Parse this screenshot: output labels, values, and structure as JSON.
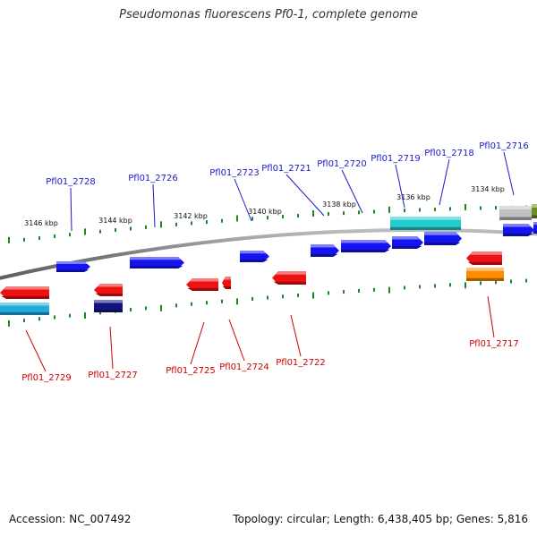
{
  "title": "Pseudomonas fluorescens Pf0-1, complete genome",
  "footer": {
    "accession": "Accession: NC_007492",
    "summary": "Topology: circular; Length: 6,438,405 bp; Genes: 5,816"
  },
  "colors": {
    "forward_label": "#1a1acc",
    "reverse_label": "#cc0000",
    "tick": "#1a8a1a",
    "backbone": "#8c8c8c"
  },
  "scale_labels": [
    "3146 kbp",
    "3144 kbp",
    "3142 kbp",
    "3140 kbp",
    "3138 kbp",
    "3136 kbp",
    "3134 kbp"
  ],
  "forward_genes": [
    {
      "id": "Pfl01_2728",
      "color": "#1414f0"
    },
    {
      "id": "Pfl01_2726",
      "color": "#1414f0"
    },
    {
      "id": "Pfl01_2723",
      "color": "#1414f0"
    },
    {
      "id": "Pfl01_2721",
      "color": "#1414f0"
    },
    {
      "id": "Pfl01_2720",
      "color": "#1414f0"
    },
    {
      "id": "Pfl01_2719",
      "color": "#1414f0"
    },
    {
      "id": "Pfl01_2718",
      "color": "#1414f0"
    },
    {
      "id": "Pfl01_2716",
      "color": "#1414f0"
    }
  ],
  "reverse_genes": [
    {
      "id": "Pfl01_2729",
      "color": "#ee1111"
    },
    {
      "id": "Pfl01_2727",
      "color": "#ee1111"
    },
    {
      "id": "Pfl01_2725",
      "color": "#ee1111"
    },
    {
      "id": "Pfl01_2724",
      "color": "#ee1111"
    },
    {
      "id": "Pfl01_2722",
      "color": "#ee1111"
    },
    {
      "id": "Pfl01_2717",
      "color": "#ee1111"
    }
  ],
  "other_features": [
    {
      "name": "cyan-feature",
      "color": "#22cccc"
    },
    {
      "name": "cyan-feature",
      "color": "#22aadd"
    },
    {
      "name": "navy-feature",
      "color": "#141480"
    },
    {
      "name": "orange-feature",
      "color": "#ff8c00"
    },
    {
      "name": "gray-feature",
      "color": "#c0c0c0"
    },
    {
      "name": "olive-feature",
      "color": "#6b8e23"
    }
  ]
}
